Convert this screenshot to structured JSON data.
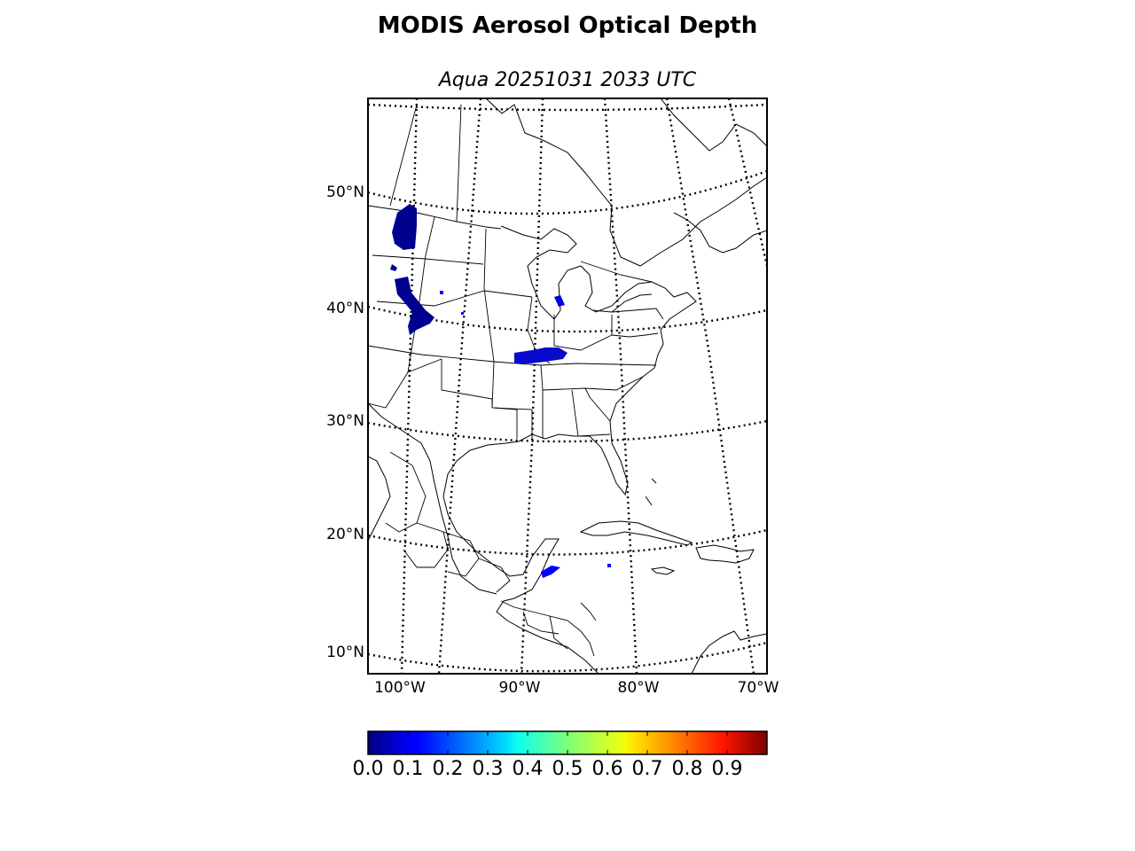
{
  "title": "MODIS Aerosol Optical Depth",
  "subtitle": "Aqua 20251031 2033 UTC",
  "lat_labels": [
    "50°N",
    "40°N",
    "30°N",
    "20°N",
    "10°N"
  ],
  "lon_labels": [
    "100°W",
    "90°W",
    "80°W",
    "70°W"
  ],
  "colorbar": {
    "colormap": "jet",
    "min": 0.0,
    "max": 1.0,
    "ticks": [
      "0.0",
      "0.1",
      "0.2",
      "0.3",
      "0.4",
      "0.5",
      "0.6",
      "0.7",
      "0.8",
      "0.9"
    ]
  },
  "colors": {
    "aod_low": "#00008f",
    "aod_mid_low": "#0000ff",
    "graticule": "#000000",
    "coastline": "#000000"
  }
}
